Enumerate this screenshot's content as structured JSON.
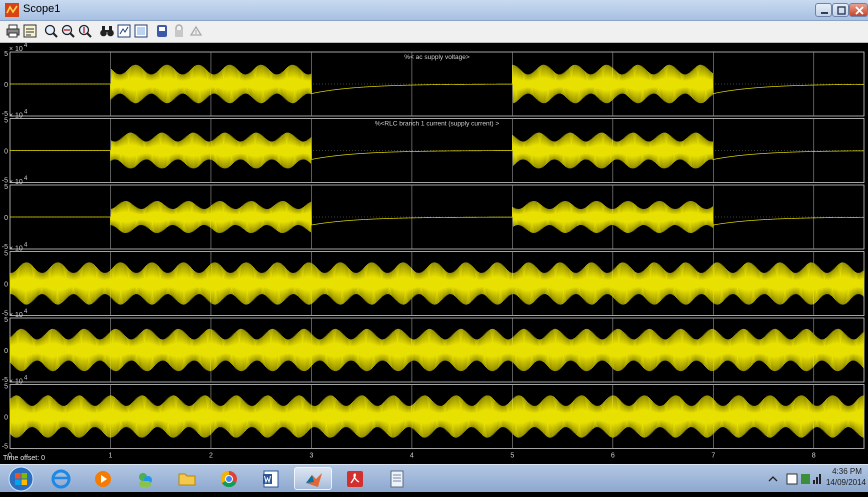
{
  "window": {
    "title": "Scope1"
  },
  "toolbar": {
    "buttons": [
      {
        "id": "print",
        "icon": "print-icon"
      },
      {
        "id": "parameters",
        "icon": "parameters-icon"
      },
      {
        "id": "zoom",
        "icon": "zoom-icon"
      },
      {
        "id": "zoom-x",
        "icon": "zoom-x-icon"
      },
      {
        "id": "zoom-y",
        "icon": "zoom-y-icon"
      },
      {
        "id": "autoscale",
        "icon": "binoculars-icon"
      },
      {
        "id": "save-axes",
        "icon": "save-axes-icon"
      },
      {
        "id": "restore-axes",
        "icon": "restore-axes-icon"
      },
      {
        "id": "floating-scope",
        "icon": "floating-scope-icon"
      },
      {
        "id": "lock-axes",
        "icon": "lock-icon"
      },
      {
        "id": "signal-selection",
        "icon": "signal-selection-icon"
      }
    ]
  },
  "scope": {
    "background": "#000000",
    "trace_color": "#e8e000",
    "axis_color": "#cfcfcf",
    "time_offset_label": "Time offset:  0",
    "chart_data": [
      {
        "type": "line",
        "title": "%< ac supply voltage>",
        "y_exponent": "× 10",
        "y_exponent_power": "4",
        "ylim": [
          -5,
          5
        ],
        "y_ticks": [
          "5",
          "0",
          "-5"
        ],
        "x_ticks": [
          "0",
          "1",
          "2",
          "3",
          "4",
          "5",
          "6",
          "7",
          "8"
        ],
        "xlim": [
          0,
          8.5
        ],
        "amplitude": 3,
        "pattern": "gated"
      },
      {
        "type": "line",
        "title": "%<RLC branch 1 current (supply current) >",
        "y_exponent": "× 10",
        "y_exponent_power": "4",
        "ylim": [
          -5,
          5
        ],
        "y_ticks": [
          "5",
          "0",
          "-5"
        ],
        "x_ticks": [
          "0",
          "1",
          "2",
          "3",
          "4",
          "5",
          "6",
          "7",
          "8"
        ],
        "xlim": [
          0,
          8.5
        ],
        "amplitude": 2.8,
        "pattern": "gated"
      },
      {
        "type": "line",
        "title": "",
        "y_exponent": "× 10",
        "y_exponent_power": "4",
        "ylim": [
          -5,
          5
        ],
        "y_ticks": [
          "5",
          "0",
          "-5"
        ],
        "x_ticks": [
          "0",
          "1",
          "2",
          "3",
          "4",
          "5",
          "6",
          "7",
          "8"
        ],
        "xlim": [
          0,
          8.5
        ],
        "amplitude": 2.5,
        "pattern": "gated"
      },
      {
        "type": "line",
        "title": "",
        "y_exponent": "× 10",
        "y_exponent_power": "4",
        "ylim": [
          -5,
          5
        ],
        "y_ticks": [
          "5",
          "0",
          "-5"
        ],
        "x_ticks": [
          "0",
          "1",
          "2",
          "3",
          "4",
          "5",
          "6",
          "7",
          "8"
        ],
        "xlim": [
          0,
          8.5
        ],
        "amplitude": 3.3,
        "pattern": "continuous"
      },
      {
        "type": "line",
        "title": "",
        "y_exponent": "× 10",
        "y_exponent_power": "4",
        "ylim": [
          -5,
          5
        ],
        "y_ticks": [
          "5",
          "0",
          "-5"
        ],
        "x_ticks": [
          "0",
          "1",
          "2",
          "3",
          "4",
          "5",
          "6",
          "7",
          "8"
        ],
        "xlim": [
          0,
          8.5
        ],
        "amplitude": 3.3,
        "pattern": "continuous"
      },
      {
        "type": "line",
        "title": "",
        "y_exponent": "× 10",
        "y_exponent_power": "4",
        "ylim": [
          -5,
          5
        ],
        "y_ticks": [
          "5",
          "0",
          "-5"
        ],
        "x_ticks": [
          "0",
          "1",
          "2",
          "3",
          "4",
          "5",
          "6",
          "7",
          "8"
        ],
        "xlim": [
          0,
          8.5
        ],
        "amplitude": 3.3,
        "pattern": "continuous"
      }
    ]
  },
  "taskbar": {
    "apps": [
      {
        "id": "internet-explorer",
        "icon": "internet-explorer-icon",
        "active": false
      },
      {
        "id": "media-player",
        "icon": "media-player-icon",
        "active": false
      },
      {
        "id": "messenger",
        "icon": "messenger-icon",
        "active": false
      },
      {
        "id": "file-explorer",
        "icon": "folder-icon",
        "active": false
      },
      {
        "id": "chrome",
        "icon": "chrome-icon",
        "active": false
      },
      {
        "id": "word",
        "icon": "word-icon",
        "active": false
      },
      {
        "id": "matlab",
        "icon": "matlab-icon",
        "active": true
      },
      {
        "id": "acrobat",
        "icon": "acrobat-icon",
        "active": false
      },
      {
        "id": "notepad",
        "icon": "document-icon",
        "active": false
      }
    ],
    "clock_time": "4:36 PM",
    "clock_date": "14/09/2014"
  }
}
